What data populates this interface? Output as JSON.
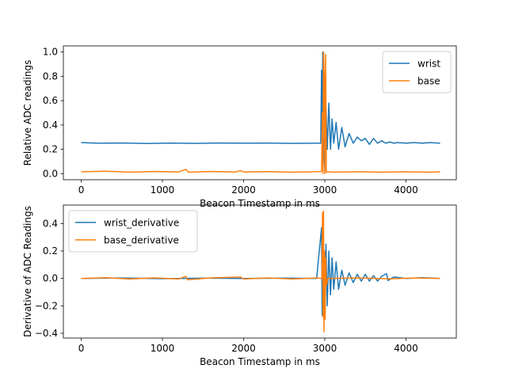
{
  "chart_data": [
    {
      "type": "line",
      "xlabel": "Beacon Timestamp in ms",
      "ylabel": "Relative ADC readings",
      "xlim": [
        -220,
        4620
      ],
      "ylim": [
        -0.05,
        1.05
      ],
      "xticks": [
        0,
        1000,
        2000,
        3000,
        4000
      ],
      "yticks": [
        0.0,
        0.2,
        0.4,
        0.6,
        0.8,
        1.0
      ],
      "xtick_labels": [
        "0",
        "1000",
        "2000",
        "3000",
        "4000"
      ],
      "ytick_labels": [
        "0.0",
        "0.2",
        "0.4",
        "0.6",
        "0.8",
        "1.0"
      ],
      "legend_position": "upper-right",
      "series": [
        {
          "name": "wrist",
          "color": "#1f77b4",
          "points": [
            [
              0,
              0.255
            ],
            [
              200,
              0.25
            ],
            [
              500,
              0.252
            ],
            [
              800,
              0.248
            ],
            [
              1100,
              0.251
            ],
            [
              1400,
              0.249
            ],
            [
              1700,
              0.252
            ],
            [
              2000,
              0.25
            ],
            [
              2300,
              0.251
            ],
            [
              2600,
              0.249
            ],
            [
              2900,
              0.25
            ],
            [
              2950,
              0.25
            ],
            [
              2960,
              0.85
            ],
            [
              2968,
              0.3
            ],
            [
              2975,
              1.0
            ],
            [
              2982,
              0.3
            ],
            [
              2990,
              0.15
            ],
            [
              3000,
              0.02
            ],
            [
              3015,
              0.55
            ],
            [
              3030,
              0.2
            ],
            [
              3050,
              0.58
            ],
            [
              3070,
              0.2
            ],
            [
              3090,
              0.45
            ],
            [
              3110,
              0.25
            ],
            [
              3140,
              0.42
            ],
            [
              3170,
              0.2
            ],
            [
              3210,
              0.38
            ],
            [
              3250,
              0.22
            ],
            [
              3300,
              0.33
            ],
            [
              3350,
              0.25
            ],
            [
              3400,
              0.3
            ],
            [
              3450,
              0.27
            ],
            [
              3500,
              0.29
            ],
            [
              3550,
              0.24
            ],
            [
              3600,
              0.29
            ],
            [
              3650,
              0.25
            ],
            [
              3700,
              0.27
            ],
            [
              3750,
              0.25
            ],
            [
              3800,
              0.26
            ],
            [
              3850,
              0.25
            ],
            [
              3900,
              0.255
            ],
            [
              4000,
              0.25
            ],
            [
              4100,
              0.255
            ],
            [
              4200,
              0.25
            ],
            [
              4300,
              0.255
            ],
            [
              4420,
              0.25
            ]
          ]
        },
        {
          "name": "base",
          "color": "#ff7f0e",
          "points": [
            [
              0,
              0.015
            ],
            [
              300,
              0.02
            ],
            [
              600,
              0.012
            ],
            [
              900,
              0.018
            ],
            [
              1200,
              0.014
            ],
            [
              1290,
              0.035
            ],
            [
              1320,
              0.012
            ],
            [
              1600,
              0.018
            ],
            [
              1900,
              0.013
            ],
            [
              1960,
              0.025
            ],
            [
              2000,
              0.014
            ],
            [
              2300,
              0.017
            ],
            [
              2600,
              0.012
            ],
            [
              2900,
              0.016
            ],
            [
              2960,
              0.018
            ],
            [
              2970,
              0.5
            ],
            [
              2978,
              0.0
            ],
            [
              2985,
              1.0
            ],
            [
              2993,
              0.8
            ],
            [
              3000,
              0.0
            ],
            [
              3010,
              0.98
            ],
            [
              3020,
              0.01
            ],
            [
              3040,
              0.015
            ],
            [
              3100,
              0.012
            ],
            [
              3400,
              0.016
            ],
            [
              3700,
              0.012
            ],
            [
              4000,
              0.015
            ],
            [
              4300,
              0.012
            ],
            [
              4420,
              0.015
            ]
          ]
        }
      ]
    },
    {
      "type": "line",
      "xlabel": "Beacon Timestamp in ms",
      "ylabel": "Derivative of ADC Readings",
      "xlim": [
        -220,
        4620
      ],
      "ylim": [
        -0.435,
        0.535
      ],
      "xticks": [
        0,
        1000,
        2000,
        3000,
        4000
      ],
      "yticks": [
        -0.4,
        -0.2,
        0.0,
        0.2,
        0.4
      ],
      "xtick_labels": [
        "0",
        "1000",
        "2000",
        "3000",
        "4000"
      ],
      "ytick_labels": [
        "−0.4",
        "−0.2",
        "0.0",
        "0.2",
        "0.4"
      ],
      "legend_position": "upper-left",
      "series": [
        {
          "name": "wrist_derivative",
          "color": "#1f77b4",
          "points": [
            [
              0,
              0.0
            ],
            [
              500,
              0.003
            ],
            [
              1000,
              -0.002
            ],
            [
              1500,
              0.002
            ],
            [
              2000,
              0.0
            ],
            [
              2500,
              0.002
            ],
            [
              2900,
              0.0
            ],
            [
              2960,
              0.37
            ],
            [
              2968,
              -0.27
            ],
            [
              2975,
              0.3
            ],
            [
              2985,
              -0.2
            ],
            [
              3000,
              -0.15
            ],
            [
              3015,
              0.25
            ],
            [
              3030,
              -0.2
            ],
            [
              3050,
              0.2
            ],
            [
              3070,
              -0.12
            ],
            [
              3090,
              0.15
            ],
            [
              3110,
              -0.08
            ],
            [
              3140,
              0.12
            ],
            [
              3170,
              -0.08
            ],
            [
              3210,
              0.06
            ],
            [
              3250,
              -0.05
            ],
            [
              3300,
              0.04
            ],
            [
              3350,
              -0.03
            ],
            [
              3400,
              0.03
            ],
            [
              3450,
              -0.02
            ],
            [
              3500,
              0.03
            ],
            [
              3550,
              -0.02
            ],
            [
              3600,
              0.02
            ],
            [
              3650,
              -0.02
            ],
            [
              3700,
              0.015
            ],
            [
              3760,
              0.035
            ],
            [
              3780,
              -0.015
            ],
            [
              3850,
              0.01
            ],
            [
              4000,
              0.0
            ],
            [
              4200,
              0.005
            ],
            [
              4420,
              0.0
            ]
          ]
        },
        {
          "name": "base_derivative",
          "color": "#ff7f0e",
          "points": [
            [
              0,
              0.0
            ],
            [
              300,
              0.005
            ],
            [
              600,
              -0.004
            ],
            [
              900,
              0.004
            ],
            [
              1200,
              -0.004
            ],
            [
              1290,
              0.015
            ],
            [
              1310,
              -0.01
            ],
            [
              1600,
              0.004
            ],
            [
              1960,
              0.01
            ],
            [
              2000,
              -0.004
            ],
            [
              2300,
              0.004
            ],
            [
              2600,
              -0.004
            ],
            [
              2900,
              0.003
            ],
            [
              2965,
              0.0
            ],
            [
              2972,
              0.48
            ],
            [
              2978,
              -0.28
            ],
            [
              2985,
              0.49
            ],
            [
              2990,
              -0.39
            ],
            [
              2998,
              0.2
            ],
            [
              3005,
              -0.3
            ],
            [
              3012,
              0.15
            ],
            [
              3020,
              -0.05
            ],
            [
              3040,
              0.0
            ],
            [
              3400,
              0.004
            ],
            [
              3800,
              -0.003
            ],
            [
              4100,
              0.003
            ],
            [
              4420,
              0.0
            ]
          ]
        }
      ]
    }
  ]
}
